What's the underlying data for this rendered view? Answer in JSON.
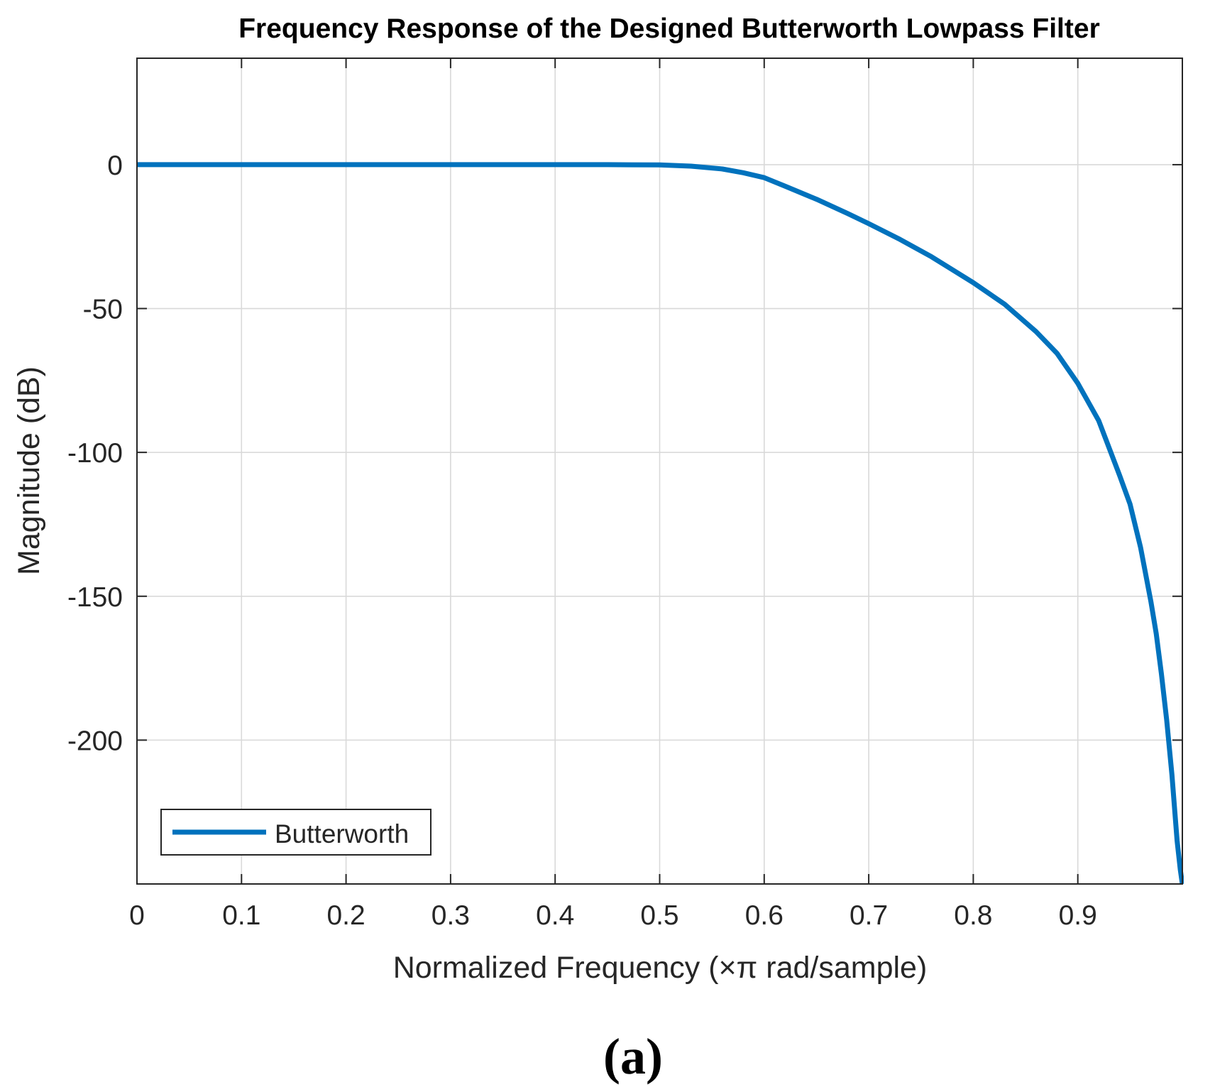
{
  "chart_data": {
    "type": "line",
    "title": "Frequency Response of the Designed Butterworth Lowpass Filter",
    "xlabel": "Normalized Frequency (×π rad/sample)",
    "ylabel": "Magnitude (dB)",
    "xlim": [
      0,
      1.0
    ],
    "ylim": [
      -250,
      37
    ],
    "x_ticks": [
      0,
      0.1,
      0.2,
      0.3,
      0.4,
      0.5,
      0.6,
      0.7,
      0.8,
      0.9
    ],
    "x_tick_labels": [
      "0",
      "0.1",
      "0.2",
      "0.3",
      "0.4",
      "0.5",
      "0.6",
      "0.7",
      "0.8",
      "0.9"
    ],
    "y_ticks": [
      0,
      -50,
      -100,
      -150,
      -200
    ],
    "y_tick_labels": [
      "0",
      "-50",
      "-100",
      "-150",
      "-200"
    ],
    "grid": true,
    "legend": {
      "position": "bottom-left",
      "entries": [
        "Butterworth"
      ]
    },
    "series": [
      {
        "name": "Butterworth",
        "color": "#0072BD",
        "x": [
          0,
          0.1,
          0.2,
          0.3,
          0.4,
          0.45,
          0.5,
          0.53,
          0.56,
          0.58,
          0.6,
          0.62,
          0.65,
          0.68,
          0.7,
          0.73,
          0.76,
          0.8,
          0.83,
          0.86,
          0.88,
          0.9,
          0.92,
          0.94,
          0.95,
          0.96,
          0.97,
          0.975,
          0.98,
          0.985,
          0.99,
          0.995,
          0.998,
          1.0
        ],
        "y": [
          0,
          0,
          0,
          0,
          0,
          0,
          -0.1,
          -0.5,
          -1.5,
          -2.8,
          -4.5,
          -7.5,
          -12,
          -17,
          -20.5,
          -26,
          -32,
          -41,
          -48.5,
          -58,
          -65.5,
          -76,
          -89,
          -108,
          -118,
          -133,
          -152,
          -163,
          -177,
          -193,
          -212,
          -235,
          -245,
          -250
        ]
      }
    ],
    "panel_label": "(a)"
  }
}
